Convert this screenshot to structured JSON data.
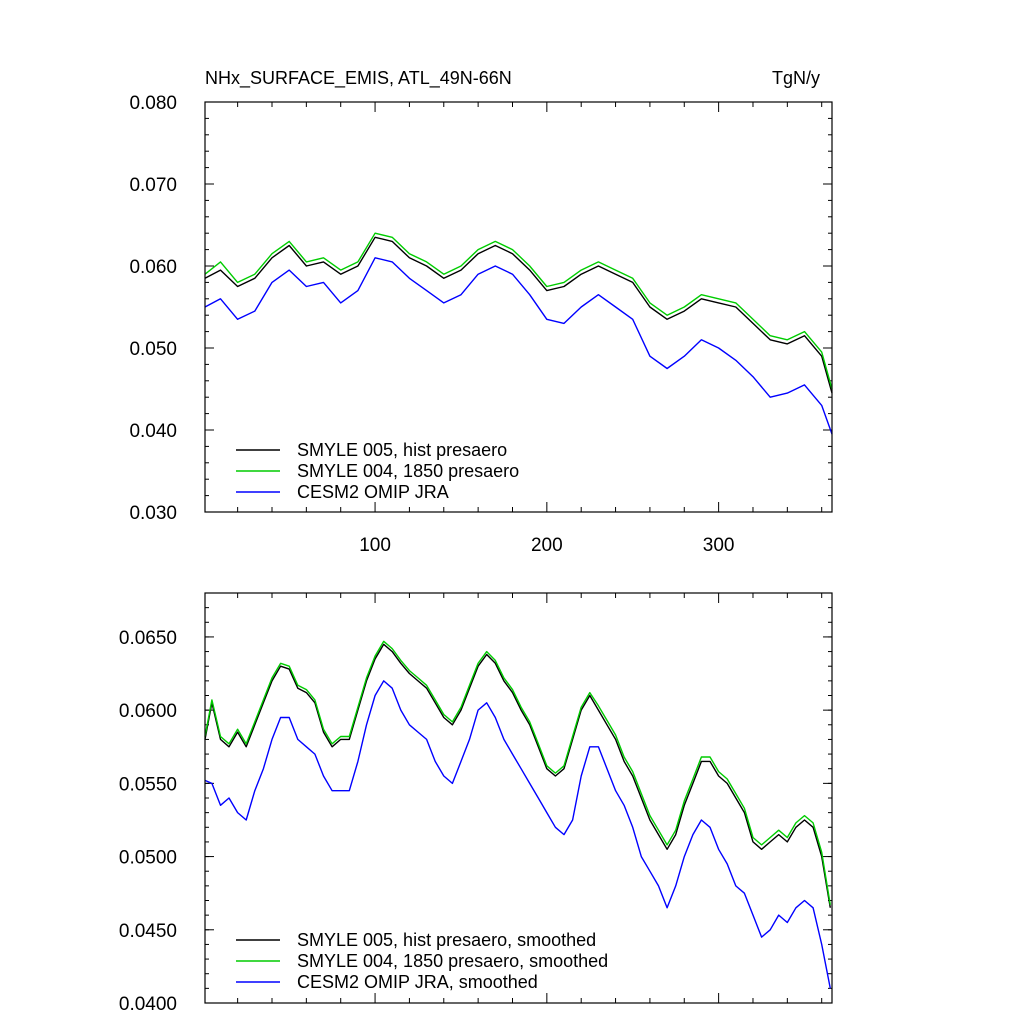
{
  "chart_data": [
    {
      "type": "line",
      "title": "NHx_SURFACE_EMIS, ATL_49N-66N",
      "units": "TgN/y",
      "xlim": [
        1,
        366
      ],
      "ylim": [
        0.03,
        0.08
      ],
      "x_ticks": [
        100,
        200,
        300
      ],
      "x_tick_labels": [
        "100",
        "200",
        "300"
      ],
      "y_ticks": [
        0.03,
        0.04,
        0.05,
        0.06,
        0.07,
        0.08
      ],
      "y_tick_labels": [
        "0.030",
        "0.040",
        "0.050",
        "0.060",
        "0.070",
        "0.080"
      ],
      "legend_position": "bottom-left",
      "x": [
        1,
        10,
        20,
        30,
        40,
        50,
        60,
        70,
        80,
        90,
        100,
        110,
        120,
        130,
        140,
        150,
        160,
        170,
        180,
        190,
        200,
        210,
        220,
        230,
        240,
        250,
        260,
        270,
        280,
        290,
        300,
        310,
        320,
        330,
        340,
        350,
        360,
        366
      ],
      "series": [
        {
          "name": "SMYLE 005, hist presaero",
          "color": "#000000",
          "values": [
            0.0585,
            0.0595,
            0.0575,
            0.0585,
            0.061,
            0.0625,
            0.06,
            0.0605,
            0.059,
            0.06,
            0.0635,
            0.063,
            0.061,
            0.06,
            0.0585,
            0.0595,
            0.0615,
            0.0625,
            0.0615,
            0.0595,
            0.057,
            0.0575,
            0.059,
            0.06,
            0.059,
            0.058,
            0.055,
            0.0535,
            0.0545,
            0.056,
            0.0555,
            0.055,
            0.053,
            0.051,
            0.0505,
            0.0515,
            0.049,
            0.0445
          ]
        },
        {
          "name": "SMYLE 004, 1850 presaero",
          "color": "#00cc00",
          "values": [
            0.059,
            0.0605,
            0.058,
            0.059,
            0.0615,
            0.063,
            0.0605,
            0.061,
            0.0595,
            0.0605,
            0.064,
            0.0635,
            0.0615,
            0.0605,
            0.059,
            0.06,
            0.062,
            0.063,
            0.062,
            0.06,
            0.0575,
            0.058,
            0.0595,
            0.0605,
            0.0595,
            0.0585,
            0.0555,
            0.054,
            0.055,
            0.0565,
            0.056,
            0.0555,
            0.0535,
            0.0515,
            0.051,
            0.052,
            0.0495,
            0.045
          ]
        },
        {
          "name": "CESM2 OMIP JRA",
          "color": "#0000ff",
          "values": [
            0.055,
            0.056,
            0.0535,
            0.0545,
            0.058,
            0.0595,
            0.0575,
            0.058,
            0.0555,
            0.057,
            0.061,
            0.0605,
            0.0585,
            0.057,
            0.0555,
            0.0565,
            0.059,
            0.06,
            0.059,
            0.0565,
            0.0535,
            0.053,
            0.055,
            0.0565,
            0.055,
            0.0535,
            0.049,
            0.0475,
            0.049,
            0.051,
            0.05,
            0.0485,
            0.0465,
            0.044,
            0.0445,
            0.0455,
            0.043,
            0.0395
          ]
        }
      ]
    },
    {
      "type": "line",
      "xlim": [
        1,
        366
      ],
      "ylim": [
        0.04,
        0.068
      ],
      "y_ticks": [
        0.04,
        0.045,
        0.05,
        0.055,
        0.06,
        0.065
      ],
      "y_tick_labels": [
        "0.0400",
        "0.0450",
        "0.0500",
        "0.0550",
        "0.0600",
        "0.0650"
      ],
      "legend_position": "bottom-left",
      "x": [
        1,
        5,
        10,
        15,
        20,
        25,
        30,
        35,
        40,
        45,
        50,
        55,
        60,
        65,
        70,
        75,
        80,
        85,
        90,
        95,
        100,
        105,
        110,
        115,
        120,
        125,
        130,
        135,
        140,
        145,
        150,
        155,
        160,
        165,
        170,
        175,
        180,
        185,
        190,
        195,
        200,
        205,
        210,
        215,
        220,
        225,
        230,
        235,
        240,
        245,
        250,
        255,
        260,
        265,
        270,
        275,
        280,
        285,
        290,
        295,
        300,
        305,
        310,
        315,
        320,
        325,
        330,
        335,
        340,
        345,
        350,
        355,
        360,
        365
      ],
      "series": [
        {
          "name": "SMYLE 005, hist presaero, smoothed",
          "color": "#000000",
          "values": [
            0.058,
            0.0605,
            0.058,
            0.0575,
            0.0585,
            0.0575,
            0.059,
            0.0605,
            0.062,
            0.063,
            0.0628,
            0.0615,
            0.0612,
            0.0605,
            0.0585,
            0.0575,
            0.058,
            0.058,
            0.06,
            0.062,
            0.0635,
            0.0645,
            0.064,
            0.0632,
            0.0625,
            0.062,
            0.0615,
            0.0605,
            0.0595,
            0.059,
            0.06,
            0.0615,
            0.063,
            0.0638,
            0.0632,
            0.062,
            0.0612,
            0.06,
            0.059,
            0.0575,
            0.056,
            0.0555,
            0.056,
            0.058,
            0.06,
            0.061,
            0.06,
            0.059,
            0.058,
            0.0565,
            0.0555,
            0.054,
            0.0525,
            0.0515,
            0.0505,
            0.0515,
            0.0535,
            0.055,
            0.0565,
            0.0565,
            0.0555,
            0.055,
            0.054,
            0.053,
            0.051,
            0.0505,
            0.051,
            0.0515,
            0.051,
            0.052,
            0.0525,
            0.052,
            0.05,
            0.0465
          ]
        },
        {
          "name": "SMYLE 004, 1850 presaero, smoothed",
          "color": "#00cc00",
          "values": [
            0.0582,
            0.0607,
            0.0582,
            0.0577,
            0.0587,
            0.0577,
            0.0592,
            0.0607,
            0.0622,
            0.0632,
            0.063,
            0.0617,
            0.0614,
            0.0607,
            0.0587,
            0.0577,
            0.0582,
            0.0582,
            0.0602,
            0.0622,
            0.0637,
            0.0647,
            0.0642,
            0.0634,
            0.0627,
            0.0622,
            0.0617,
            0.0607,
            0.0597,
            0.0592,
            0.0602,
            0.0617,
            0.0632,
            0.064,
            0.0634,
            0.0622,
            0.0614,
            0.0602,
            0.0592,
            0.0577,
            0.0562,
            0.0557,
            0.0562,
            0.0582,
            0.0602,
            0.0612,
            0.0603,
            0.0593,
            0.0583,
            0.0568,
            0.0558,
            0.0543,
            0.0528,
            0.0518,
            0.0508,
            0.0518,
            0.0538,
            0.0553,
            0.0568,
            0.0568,
            0.0558,
            0.0553,
            0.0543,
            0.0533,
            0.0513,
            0.0508,
            0.0513,
            0.0518,
            0.0513,
            0.0523,
            0.0528,
            0.0523,
            0.0503,
            0.0467
          ]
        },
        {
          "name": "CESM2 OMIP JRA, smoothed",
          "color": "#0000ff",
          "values": [
            0.0552,
            0.055,
            0.0535,
            0.054,
            0.053,
            0.0525,
            0.0545,
            0.056,
            0.058,
            0.0595,
            0.0595,
            0.058,
            0.0575,
            0.057,
            0.0555,
            0.0545,
            0.0545,
            0.0545,
            0.0565,
            0.059,
            0.061,
            0.062,
            0.0615,
            0.06,
            0.059,
            0.0585,
            0.058,
            0.0565,
            0.0555,
            0.055,
            0.0565,
            0.058,
            0.06,
            0.0605,
            0.0595,
            0.058,
            0.057,
            0.056,
            0.055,
            0.054,
            0.053,
            0.052,
            0.0515,
            0.0525,
            0.0555,
            0.0575,
            0.0575,
            0.056,
            0.0545,
            0.0535,
            0.052,
            0.05,
            0.049,
            0.048,
            0.0465,
            0.048,
            0.05,
            0.0515,
            0.0525,
            0.052,
            0.0505,
            0.0495,
            0.048,
            0.0475,
            0.046,
            0.0445,
            0.045,
            0.046,
            0.0455,
            0.0465,
            0.047,
            0.0465,
            0.044,
            0.041
          ]
        }
      ]
    }
  ]
}
